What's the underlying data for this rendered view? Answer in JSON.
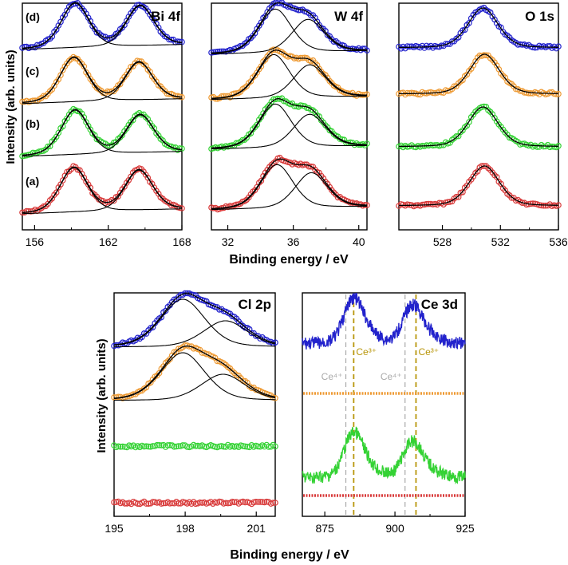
{
  "figure": {
    "top_ylabel": "Intensity (arb. units)",
    "top_xlabel": "Binding energy / eV",
    "bottom_ylabel": "Intensity (arb. units)",
    "bottom_xlabel": "Binding energy / eV"
  },
  "colors": {
    "a": "#d83a3a",
    "b": "#34d234",
    "c": "#ee9a33",
    "d": "#2222cc",
    "fit": "#000000",
    "ce3_line": "#b8960a",
    "ce4_line": "#aaaaaa"
  },
  "chart_data": [
    {
      "id": "bi4f",
      "type": "line",
      "title": "Bi 4f",
      "xlim": [
        155,
        168
      ],
      "xticks": [
        156,
        162,
        168
      ],
      "sample_labels": [
        "(a)",
        "(b)",
        "(c)",
        "(d)"
      ],
      "series": [
        {
          "name": "(a)",
          "peaks": [
            {
              "center": 159.2,
              "height": 1.0
            },
            {
              "center": 164.5,
              "height": 0.9
            }
          ]
        },
        {
          "name": "(b)",
          "peaks": [
            {
              "center": 159.3,
              "height": 1.0
            },
            {
              "center": 164.6,
              "height": 0.85
            }
          ]
        },
        {
          "name": "(c)",
          "peaks": [
            {
              "center": 159.2,
              "height": 1.0
            },
            {
              "center": 164.5,
              "height": 0.85
            }
          ]
        },
        {
          "name": "(d)",
          "peaks": [
            {
              "center": 159.3,
              "height": 1.0
            },
            {
              "center": 164.6,
              "height": 0.9
            }
          ]
        }
      ]
    },
    {
      "id": "w4f",
      "type": "line",
      "title": "W 4f",
      "xlim": [
        31,
        40.5
      ],
      "xticks": [
        32,
        36,
        40
      ],
      "series": [
        {
          "name": "(a)",
          "peaks": [
            {
              "center": 35.0,
              "height": 1.0
            },
            {
              "center": 37.1,
              "height": 0.8
            }
          ]
        },
        {
          "name": "(b)",
          "peaks": [
            {
              "center": 34.9,
              "height": 1.0
            },
            {
              "center": 37.0,
              "height": 0.75
            }
          ]
        },
        {
          "name": "(c)",
          "peaks": [
            {
              "center": 34.8,
              "height": 1.0
            },
            {
              "center": 37.0,
              "height": 0.75
            }
          ]
        },
        {
          "name": "(d)",
          "peaks": [
            {
              "center": 34.9,
              "height": 1.0
            },
            {
              "center": 36.9,
              "height": 0.75
            }
          ]
        }
      ]
    },
    {
      "id": "o1s",
      "type": "line",
      "title": "O 1s",
      "xlim": [
        525,
        536
      ],
      "xticks": [
        528,
        532,
        536
      ],
      "series": [
        {
          "name": "(a)",
          "peaks": [
            {
              "center": 530.9,
              "height": 1.0
            }
          ]
        },
        {
          "name": "(b)",
          "peaks": [
            {
              "center": 530.8,
              "height": 1.0
            }
          ]
        },
        {
          "name": "(c)",
          "peaks": [
            {
              "center": 530.9,
              "height": 1.0
            }
          ]
        },
        {
          "name": "(d)",
          "peaks": [
            {
              "center": 530.8,
              "height": 1.0
            }
          ]
        }
      ]
    },
    {
      "id": "cl2p",
      "type": "line",
      "title": "Cl 2p",
      "xlim": [
        195,
        201.8
      ],
      "xticks": [
        195,
        198,
        201
      ],
      "series": [
        {
          "name": "(a)",
          "peaks": []
        },
        {
          "name": "(b)",
          "peaks": []
        },
        {
          "name": "(c)",
          "peaks": [
            {
              "center": 197.9,
              "height": 1.0
            },
            {
              "center": 199.6,
              "height": 0.55
            }
          ]
        },
        {
          "name": "(d)",
          "peaks": [
            {
              "center": 197.9,
              "height": 1.0
            },
            {
              "center": 199.7,
              "height": 0.55
            }
          ]
        }
      ]
    },
    {
      "id": "ce3d",
      "type": "line",
      "title": "Ce 3d",
      "xlim": [
        867,
        925
      ],
      "xticks": [
        875,
        900,
        925
      ],
      "ref_lines": [
        {
          "label": "Ce⁴⁺",
          "energy": 882.5,
          "kind": "ce4"
        },
        {
          "label": "Ce³⁺",
          "energy": 885.3,
          "kind": "ce3"
        },
        {
          "label": "Ce⁴⁺",
          "energy": 903.6,
          "kind": "ce4"
        },
        {
          "label": "Ce³⁺",
          "energy": 907.5,
          "kind": "ce3"
        }
      ],
      "series": [
        {
          "name": "(a)",
          "peaks": []
        },
        {
          "name": "(b)",
          "peaks": [
            {
              "center": 885.0,
              "height": 1.0
            },
            {
              "center": 906.0,
              "height": 0.8
            }
          ]
        },
        {
          "name": "(c)",
          "peaks": []
        },
        {
          "name": "(d)",
          "peaks": [
            {
              "center": 885.0,
              "height": 1.0
            },
            {
              "center": 906.0,
              "height": 0.85
            }
          ]
        }
      ]
    }
  ]
}
